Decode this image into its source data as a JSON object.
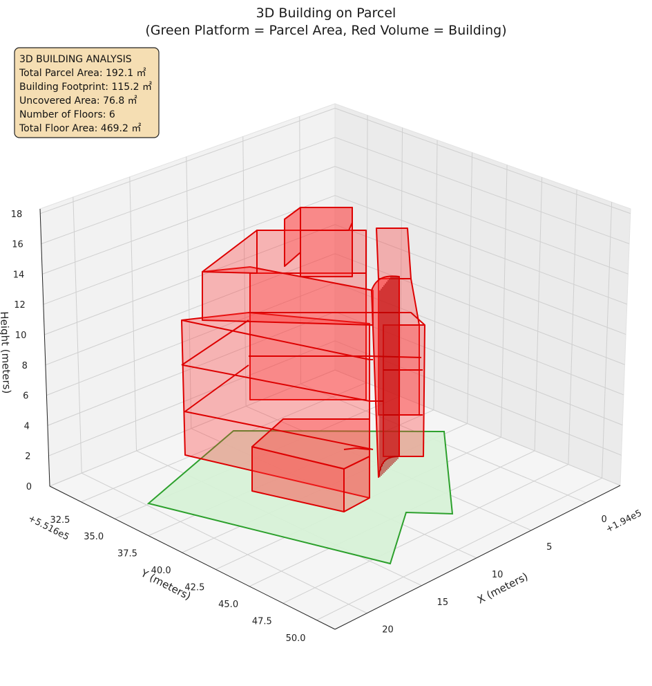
{
  "chart_data": {
    "type": "3d-polygon",
    "title": "3D Building on Parcel",
    "subtitle": "(Green Platform = Parcel Area, Red Volume = Building)",
    "xlabel": "X (meters)",
    "ylabel": "Y (meters)",
    "zlabel": "Height (meters)",
    "x_offset_label": "+1.94e5",
    "y_offset_label": "+5.516e5",
    "x_ticks": [
      "0",
      "5",
      "10",
      "15",
      "20"
    ],
    "y_ticks": [
      "32.5",
      "35.0",
      "37.5",
      "40.0",
      "42.5",
      "45.0",
      "47.5",
      "50.0"
    ],
    "z_ticks": [
      "0",
      "2",
      "4",
      "6",
      "8",
      "10",
      "12",
      "14",
      "16",
      "18"
    ],
    "grid": true,
    "parcel_color": "#2ca02c",
    "parcel_fill": "#d6f2d6",
    "building_color": "#ee0000",
    "building_fill": "#ff3333",
    "info_box": {
      "heading": "3D BUILDING ANALYSIS",
      "lines": [
        "Total Parcel Area: 192.1 ㎡",
        "Building Footprint: 115.2 ㎡",
        "Uncovered Area: 76.8 ㎡",
        "Number of Floors: 6",
        "Total Floor Area: 469.2 ㎡"
      ]
    }
  }
}
